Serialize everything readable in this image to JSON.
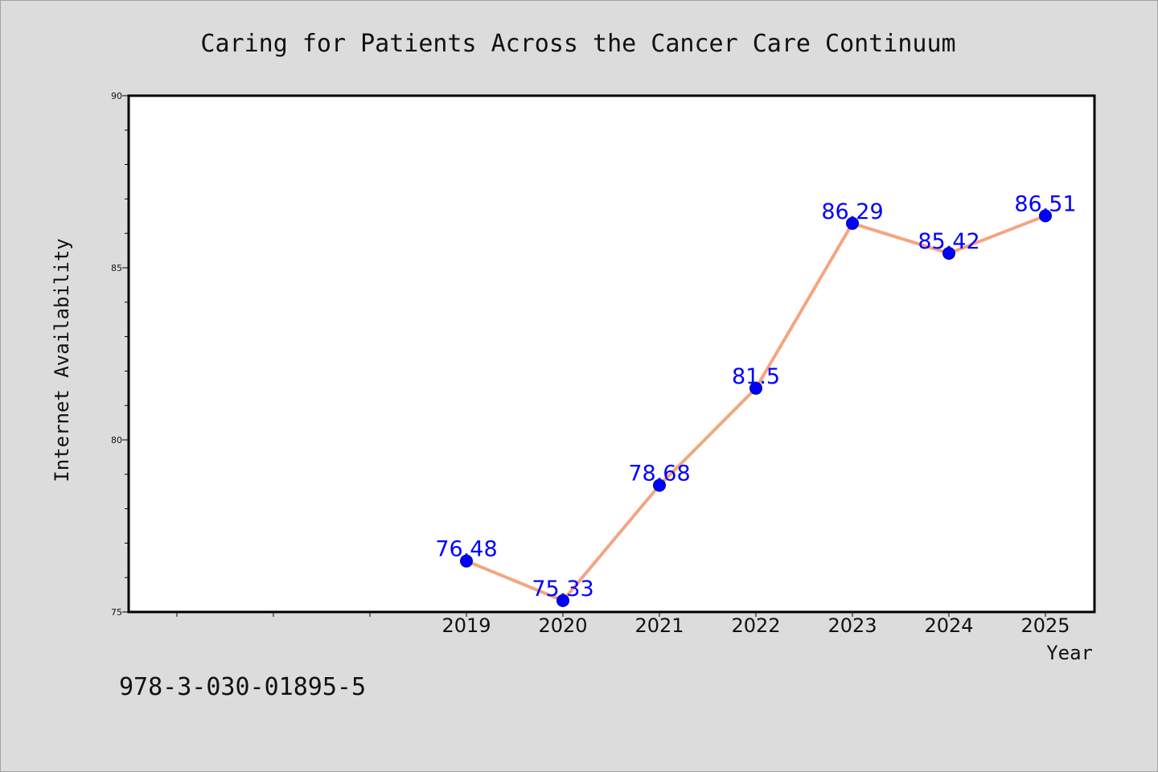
{
  "chart_data": {
    "type": "line",
    "title": "Caring for Patients Across the Cancer Care Continuum",
    "xlabel": "Year",
    "ylabel": "Internet Availability",
    "x": [
      "2019",
      "2020",
      "2021",
      "2022",
      "2023",
      "2024",
      "2025"
    ],
    "y_tick_labels": [
      "75",
      "80",
      "85",
      "90"
    ],
    "series": [
      {
        "values": [
          76.48,
          75.33,
          78.68,
          81.5,
          86.29,
          85.42,
          86.51
        ],
        "labels": [
          "76.48",
          "75.33",
          "78.68",
          "81.5",
          "86.29",
          "85.42",
          "86.51"
        ],
        "line_color": "#f4a582",
        "marker_color": "#0000ff",
        "label_color": "#0000ff"
      }
    ],
    "ylim": [
      75,
      90
    ],
    "grid": false,
    "legend": "none",
    "plot_background": "#ffffff"
  },
  "footer": {
    "code": "978-3-030-01895-5"
  }
}
